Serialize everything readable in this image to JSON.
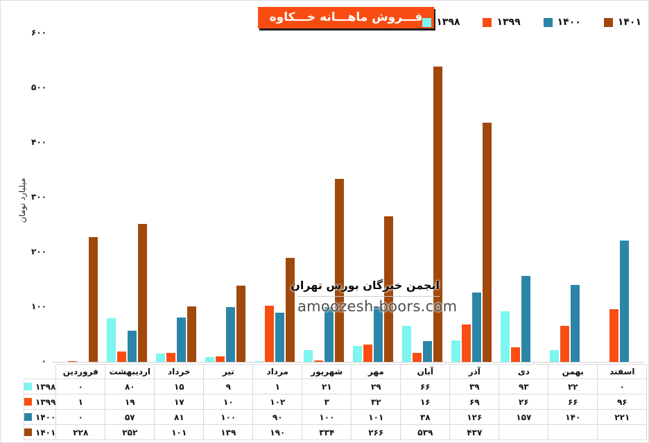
{
  "chart_data": {
    "type": "bar",
    "title": "فـــروش ماهـــانه خـــکاوه",
    "ylabel": "میلیارد تومان",
    "ylim": [
      0,
      600
    ],
    "yticks": [
      0,
      100,
      200,
      300,
      400,
      500,
      600
    ],
    "grid": false,
    "legend_position": "top-right",
    "categories": [
      "فروردین",
      "اردیبهشت",
      "خرداد",
      "تیر",
      "مرداد",
      "شهریور",
      "مهر",
      "آبان",
      "آذر",
      "دی",
      "بهمن",
      "اسفند"
    ],
    "series": [
      {
        "name": "۱۳۹۸",
        "color": "#7df6f0",
        "values": [
          0,
          80,
          15,
          9,
          1,
          21,
          29,
          66,
          39,
          93,
          22,
          0
        ]
      },
      {
        "name": "۱۳۹۹",
        "color": "#fb4d12",
        "values": [
          1,
          19,
          17,
          10,
          102,
          3,
          32,
          16,
          69,
          26,
          66,
          96
        ]
      },
      {
        "name": "۱۴۰۰",
        "color": "#2c85a6",
        "values": [
          0,
          57,
          81,
          100,
          90,
          100,
          101,
          38,
          126,
          157,
          140,
          221
        ]
      },
      {
        "name": "۱۴۰۱",
        "color": "#a1490d",
        "values": [
          228,
          252,
          101,
          139,
          190,
          334,
          266,
          539,
          437,
          null,
          null,
          null
        ]
      }
    ]
  },
  "watermark": {
    "line1": "انجمن خبرگان بورس تهران",
    "line2": "amoozesh-boors.com"
  },
  "colors": {
    "title_background": "#f94c12",
    "title_text": "#ffffff",
    "axis_line": "#cfcfcf",
    "table_border": "#d9d9d9"
  }
}
